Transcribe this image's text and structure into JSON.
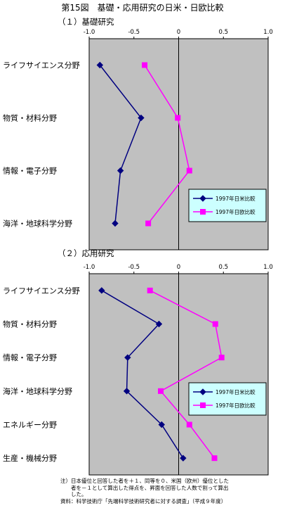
{
  "figure_title": "第15図　基礎・応用研究の日米・日欧比較",
  "notes": [
    "注）日本優位と回答した者を＋１、同等を０、米国（欧州）優位とした",
    "　　者を－１として算出した得点を、昇面を回答した人数で割って算出",
    "　　した。",
    "資料：科学技術庁「先端科学技術研究者に対する調査」（平成９年度）"
  ],
  "colors": {
    "plot_bg": "#c0c0c0",
    "us_series": "#000080",
    "eu_series": "#ff00ff",
    "legend_bg": "#ccffff"
  },
  "chart_data": [
    {
      "type": "line",
      "title": "（１）基礎研究",
      "xlim": [
        -1.0,
        1.0
      ],
      "x_ticks": [
        "-1.0",
        "-0.5",
        "0",
        "0.5",
        "1.0"
      ],
      "categories": [
        "ライフサイエンス分野",
        "物質・材料分野",
        "情報・電子分野",
        "海洋・地球科学分野"
      ],
      "series": [
        {
          "name": "1997年日米比較",
          "values": [
            -0.88,
            -0.42,
            -0.65,
            -0.71
          ]
        },
        {
          "name": "1997年日欧比較",
          "values": [
            -0.38,
            -0.01,
            0.12,
            -0.34
          ]
        }
      ],
      "legend_position": "bottom-right",
      "grid": false
    },
    {
      "type": "line",
      "title": "（２）応用研究",
      "xlim": [
        -1.0,
        1.0
      ],
      "x_ticks": [
        "-1.0",
        "-0.5",
        "0",
        "0.5",
        "1.0"
      ],
      "categories": [
        "ライフサイエンス分野",
        "物質・材料分野",
        "情報・電子分野",
        "海洋・地球科学分野",
        "エネルギー分野",
        "生産・機械分野"
      ],
      "series": [
        {
          "name": "1997年日米比較",
          "values": [
            -0.86,
            -0.22,
            -0.57,
            -0.58,
            -0.19,
            0.05
          ]
        },
        {
          "name": "1997年日欧比較",
          "values": [
            -0.32,
            0.41,
            0.48,
            -0.2,
            0.12,
            0.4
          ]
        }
      ],
      "legend_position": "bottom-right",
      "grid": false
    }
  ]
}
